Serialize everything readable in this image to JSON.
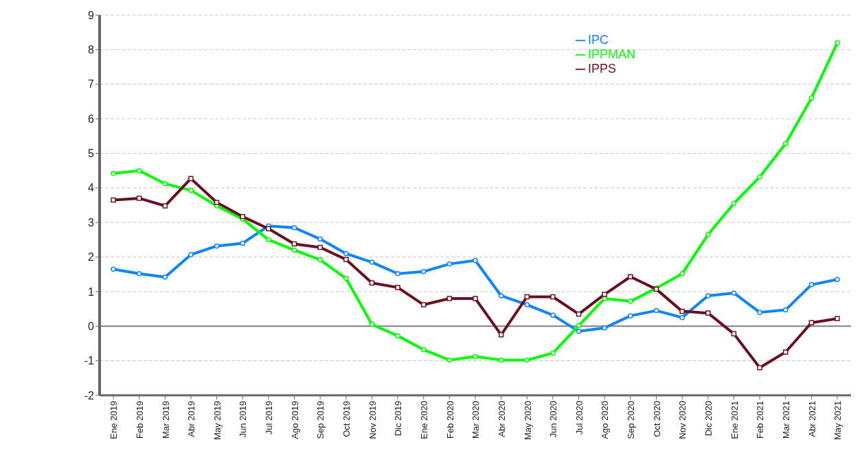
{
  "chart_data": {
    "type": "line",
    "categories": [
      "Ene 2019",
      "Feb 2019",
      "Mar 2019",
      "Abr 2019",
      "May 2019",
      "Jun 2019",
      "Jul 2019",
      "Ago 2019",
      "Sep 2019",
      "Oct 2019",
      "Nov 2019",
      "Dic 2019",
      "Ene 2020",
      "Feb 2020",
      "Mar 2020",
      "Abr 2020",
      "May 2020",
      "Jun 2020",
      "Jul 2020",
      "Ago 2020",
      "Sep 2020",
      "Oct 2020",
      "Nov 2020",
      "Dic 2020",
      "Ene 2021",
      "Feb 2021",
      "Mar 2021",
      "Abr 2021",
      "May 2021"
    ],
    "series": [
      {
        "name": "IPC",
        "color": "#0a84ff",
        "marker": "circle",
        "values": [
          1.65,
          1.52,
          1.42,
          2.07,
          2.32,
          2.4,
          2.9,
          2.85,
          2.52,
          2.1,
          1.85,
          1.52,
          1.58,
          1.8,
          1.9,
          0.88,
          0.62,
          0.32,
          -0.15,
          -0.05,
          0.3,
          0.45,
          0.25,
          0.88,
          0.96,
          0.4,
          0.47,
          1.2,
          1.35
        ]
      },
      {
        "name": "IPPMAN",
        "color": "#00ff00",
        "marker": "circle",
        "values": [
          4.42,
          4.5,
          4.12,
          3.93,
          3.48,
          3.1,
          2.5,
          2.2,
          1.92,
          1.38,
          0.05,
          -0.28,
          -0.68,
          -0.98,
          -0.88,
          -0.98,
          -0.98,
          -0.78,
          0.02,
          0.8,
          0.72,
          1.1,
          1.52,
          2.65,
          3.55,
          4.32,
          5.28,
          6.6,
          8.2
        ]
      },
      {
        "name": "IPPS",
        "color": "#6b0f1f",
        "marker": "square",
        "values": [
          3.65,
          3.7,
          3.48,
          4.27,
          3.58,
          3.17,
          2.82,
          2.38,
          2.28,
          1.93,
          1.25,
          1.12,
          0.62,
          0.8,
          0.8,
          -0.25,
          0.85,
          0.85,
          0.35,
          0.92,
          1.43,
          1.07,
          0.43,
          0.38,
          -0.22,
          -1.2,
          -0.75,
          0.1,
          0.22
        ]
      }
    ],
    "ylim": [
      -2,
      9
    ],
    "yticks": [
      -2,
      -1,
      0,
      1,
      2,
      3,
      4,
      5,
      6,
      7,
      8,
      9
    ],
    "grid": "y",
    "legend": "top right",
    "line_style": "solid",
    "ref_lines": [
      {
        "axis": "y",
        "value": 0,
        "color": "#808080"
      }
    ]
  }
}
